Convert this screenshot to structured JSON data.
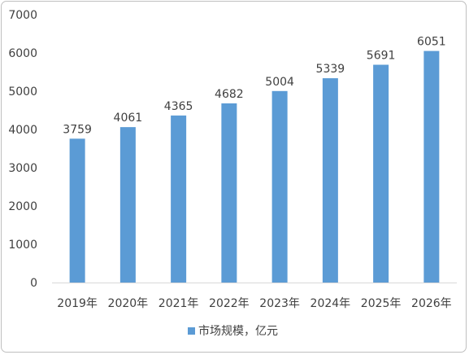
{
  "chart_data": {
    "type": "bar",
    "title": "",
    "xlabel": "",
    "ylabel": "",
    "categories": [
      "2019年",
      "2020年",
      "2021年",
      "2022年",
      "2023年",
      "2024年",
      "2025年",
      "2026年"
    ],
    "series": [
      {
        "name": "市场规模，亿元",
        "values": [
          3759,
          4061,
          4365,
          4682,
          5004,
          5339,
          5691,
          6051
        ],
        "color": "#5b9bd5"
      }
    ],
    "ylim": [
      0,
      7000
    ],
    "yticks": [
      0,
      1000,
      2000,
      3000,
      4000,
      5000,
      6000,
      7000
    ],
    "grid": false,
    "legend_position": "bottom",
    "data_labels": true
  }
}
